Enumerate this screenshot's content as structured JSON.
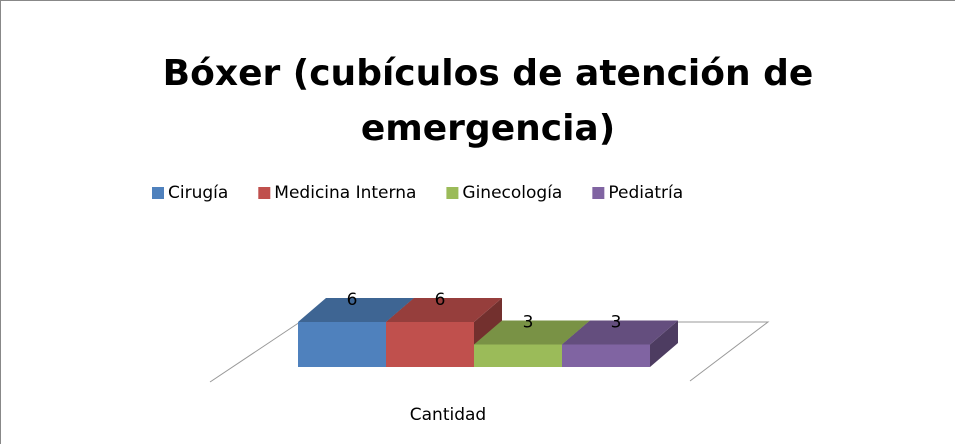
{
  "chart_data": {
    "type": "bar3d",
    "title": "Bóxer (cubículos de atención de emergencia)",
    "categories": [
      "Cantidad"
    ],
    "series": [
      {
        "name": "Cirugía",
        "color": "#4f81bd",
        "values": [
          6
        ]
      },
      {
        "name": "Medicina Interna",
        "color": "#c0504d",
        "values": [
          6
        ]
      },
      {
        "name": "Ginecología",
        "color": "#9bbb59",
        "values": [
          3
        ]
      },
      {
        "name": "Pediatría",
        "color": "#8064a2",
        "values": [
          3
        ]
      }
    ],
    "legend": "top"
  }
}
